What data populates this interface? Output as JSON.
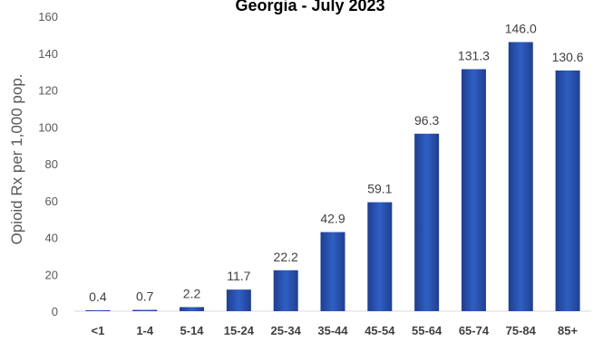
{
  "chart_data": {
    "type": "bar",
    "title": "Georgia - July 2023",
    "ylabel": "Opioid Rx per 1,000 pop.",
    "xlabel": "",
    "ylim": [
      0,
      160
    ],
    "yticks": [
      0,
      20,
      40,
      60,
      80,
      100,
      120,
      140,
      160
    ],
    "categories": [
      "<1",
      "1-4",
      "5-14",
      "15-24",
      "25-34",
      "35-44",
      "45-54",
      "55-64",
      "65-74",
      "75-84",
      "85+"
    ],
    "values": [
      0.4,
      0.7,
      2.2,
      11.7,
      22.2,
      42.9,
      59.1,
      96.3,
      131.3,
      146.0,
      130.6
    ],
    "value_labels": [
      "0.4",
      "0.7",
      "2.2",
      "11.7",
      "22.2",
      "42.9",
      "59.1",
      "96.3",
      "131.3",
      "146.0",
      "130.6"
    ],
    "grid": false,
    "bar_color_top": "#2f5fc4",
    "bar_color_bottom": "#1f3f8f"
  }
}
